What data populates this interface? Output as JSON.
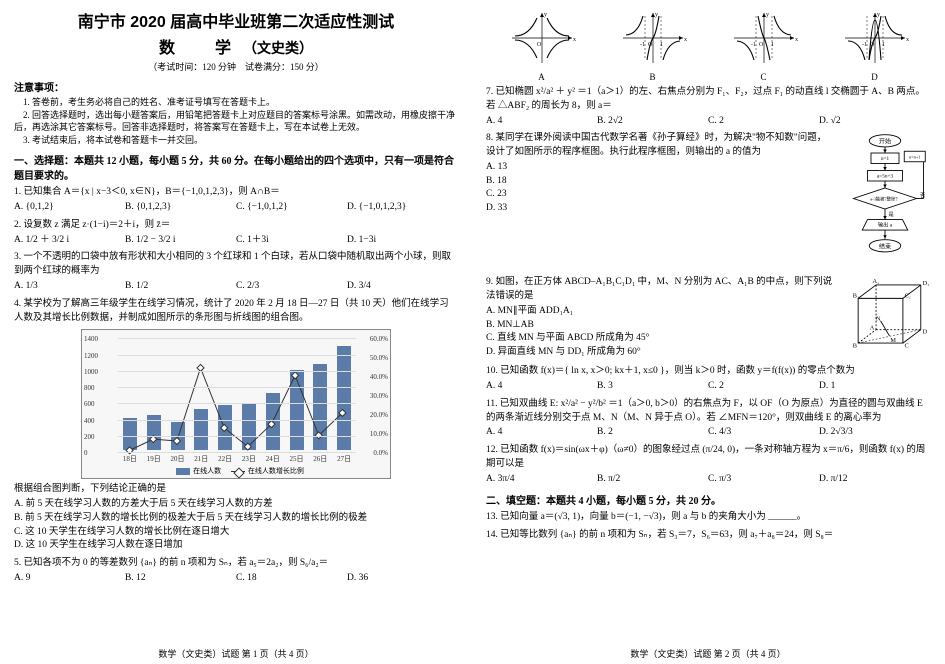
{
  "title_line1": "南宁市 2020 届高中毕业班第二次适应性测试",
  "title_line2": "数　学",
  "title_suffix": "（文史类）",
  "exam_info": "（考试时间：120 分钟　试卷满分：150 分）",
  "notes_head": "注意事项：",
  "notes": [
    "1. 答卷前，考生务必将自己的姓名、准考证号填写在答题卡上。",
    "2. 回答选择题时，选出每小题答案后，用铅笔把答题卡上对应题目的答案标号涂黑。如需改动，用橡皮擦干净后，再选涂其它答案标号。回答非选择题时，将答案写在答题卡上，写在本试卷上无效。",
    "3. 考试结束后，将本试卷和答题卡一并交回。"
  ],
  "part1_head": "一、选择题：本题共 12 小题，每小题 5 分，共 60 分。在每小题给出的四个选项中，只有一项是符合题目要求的。",
  "q1": {
    "stem": "1. 已知集合 A＝{x | x−3＜0, x∈N}，B＝{−1,0,1,2,3}，则 A∩B＝",
    "opts": [
      "A. {0,1,2}",
      "B. {0,1,2,3}",
      "C. {−1,0,1,2}",
      "D. {−1,0,1,2,3}"
    ]
  },
  "q2": {
    "stem": "2. 设复数 z 满足 z·(1−i)＝2＋i，则 z̄＝",
    "opts": [
      "A. 1/2 ＋ 3/2 i",
      "B. 1/2 − 3/2 i",
      "C. 1＋3i",
      "D. 1−3i"
    ]
  },
  "q3": {
    "stem": "3. 一个不透明的口袋中放有形状和大小相同的 3 个红球和 1 个白球，若从口袋中随机取出两个小球，则取到两个红球的概率为",
    "opts": [
      "A. 1/3",
      "B. 1/2",
      "C. 2/3",
      "D. 3/4"
    ]
  },
  "q4": {
    "stem": "4. 某学校为了解高三年级学生在线学习情况，统计了 2020 年 2 月 18 日—27 日（共 10 天）他们在线学习人数及其增长比例数据，并制成如图所示的条形图与折线图的组合图。",
    "chart": {
      "categories": [
        "18日",
        "19日",
        "20日",
        "21日",
        "22日",
        "23日",
        "24日",
        "25日",
        "26日",
        "27日"
      ],
      "bars": [
        400,
        430,
        350,
        510,
        560,
        570,
        700,
        980,
        1060,
        1280
      ],
      "line_pct": [
        0.0,
        6.0,
        5.0,
        44.0,
        12.0,
        2.0,
        14.0,
        40.0,
        8.0,
        20.0
      ],
      "y_left_max": 1400,
      "y_left_step": 200,
      "y_right_max": 60.0,
      "y_right_step": 10.0,
      "bar_color": "#5b7ba8",
      "bg_color": "#f7f7f7",
      "legend": [
        "在线人数",
        "在线人数增长比例"
      ]
    },
    "analysis_head": "根据组合图判断，下列结论正确的是",
    "opts": [
      "A. 前 5 天在线学习人数的方差大于后 5 天在线学习人数的方差",
      "B. 前 5 天在线学习人数的增长比例的极差大于后 5 天在线学习人数的增长比例的极差",
      "C. 这 10 天学生在线学习人数的增长比例在逐日增大",
      "D. 这 10 天学生在线学习人数在逐日增加"
    ]
  },
  "q5": {
    "stem": "5. 已知各项不为 0 的等差数列 {aₙ} 的前 n 项和为 Sₙ，若 a₅＝2a₂，则 S₆/a₂＝",
    "opts": [
      "A. 9",
      "B. 12",
      "C. 18",
      "D. 36"
    ]
  },
  "footer1": "数学（文史类）试题 第 1 页（共 4 页）",
  "mini_labels": [
    "A",
    "B",
    "C",
    "D"
  ],
  "q7": {
    "stem": "7. 已知椭圆 x²/a² ＋ y² ＝1（a＞1）的左、右焦点分别为 F₁、F₂，过点 F₁ 的动直线 l 交椭圆于 A、B 两点。若 △ABF₂ 的周长为 8，则 a＝",
    "opts": [
      "A. 4",
      "B. 2√2",
      "C. 2",
      "D. √2"
    ]
  },
  "q8": {
    "stem": "8. 某同学在课外阅读中国古代数学名著《孙子算经》时，为解决\"物不知数\"问题，设计了如图所示的程序框图。执行此程序框图，则输出的 a 的值为",
    "opts": [
      "A. 13",
      "B. 18",
      "C. 23",
      "D. 33"
    ]
  },
  "flowchart_labels": {
    "start": "开始",
    "init": "n=1",
    "calc": "a=5n+3",
    "cond": "a-3能被7整除？",
    "yes": "是",
    "no": "否",
    "inc": "n=n+1",
    "out": "输出 a",
    "end": "结束"
  },
  "q9": {
    "stem": "9. 如图，在正方体 ABCD–A₁B₁C₁D₁ 中，M、N 分别为 AC、A₁B 的中点，则下列说法错误的是",
    "opts": [
      "A. MN∥平面 ADD₁A₁",
      "B. MN⊥AB",
      "C. 直线 MN 与平面 ABCD 所成角为 45°",
      "D. 异面直线 MN 与 DD₁ 所成角为 60°"
    ]
  },
  "cube_labels": [
    "A",
    "B",
    "C",
    "D",
    "A₁",
    "B₁",
    "C₁",
    "D₁",
    "M",
    "N"
  ],
  "q10": {
    "stem": "10. 已知函数 f(x)＝{ ln x, x＞0; kx＋1, x≤0 }，则当 k＞0 时，函数 y＝f(f(x)) 的零点个数为",
    "opts": [
      "A. 4",
      "B. 3",
      "C. 2",
      "D. 1"
    ]
  },
  "q11": {
    "stem": "11. 已知双曲线 E: x²/a² − y²/b² ＝1（a＞0, b＞0）的右焦点为 F，以 OF（O 为原点）为直径的圆与双曲线 E 的两条渐近线分别交于点 M、N（M、N 异于点 O）。若 ∠MFN＝120°，则双曲线 E 的离心率为",
    "opts": [
      "A. 4",
      "B. 2",
      "C. 4/3",
      "D. 2√3/3"
    ]
  },
  "q12": {
    "stem": "12. 已知函数 f(x)＝sin(ωx＋φ)（ω≠0）的图象经过点 (π/24, 0)，一条对称轴方程为 x＝π/6，则函数 f(x) 的周期可以是",
    "opts": [
      "A. 3π/4",
      "B. π/2",
      "C. π/3",
      "D. π/12"
    ]
  },
  "part2_head": "二、填空题：本题共 4 小题，每小题 5 分，共 20 分。",
  "q13": "13. 已知向量 a＝(√3, 1)，向量 b＝(−1, −√3)，则 a 与 b 的夹角大小为 ______。",
  "q14": "14. 已知等比数列 {aₙ} 的前 n 项和为 Sₙ，若 S₃＝7，S₆＝63，则 a₇＋a₈＝24，则 S₈＝",
  "footer2": "数学（文史类）试题 第 2 页（共 4 页）"
}
